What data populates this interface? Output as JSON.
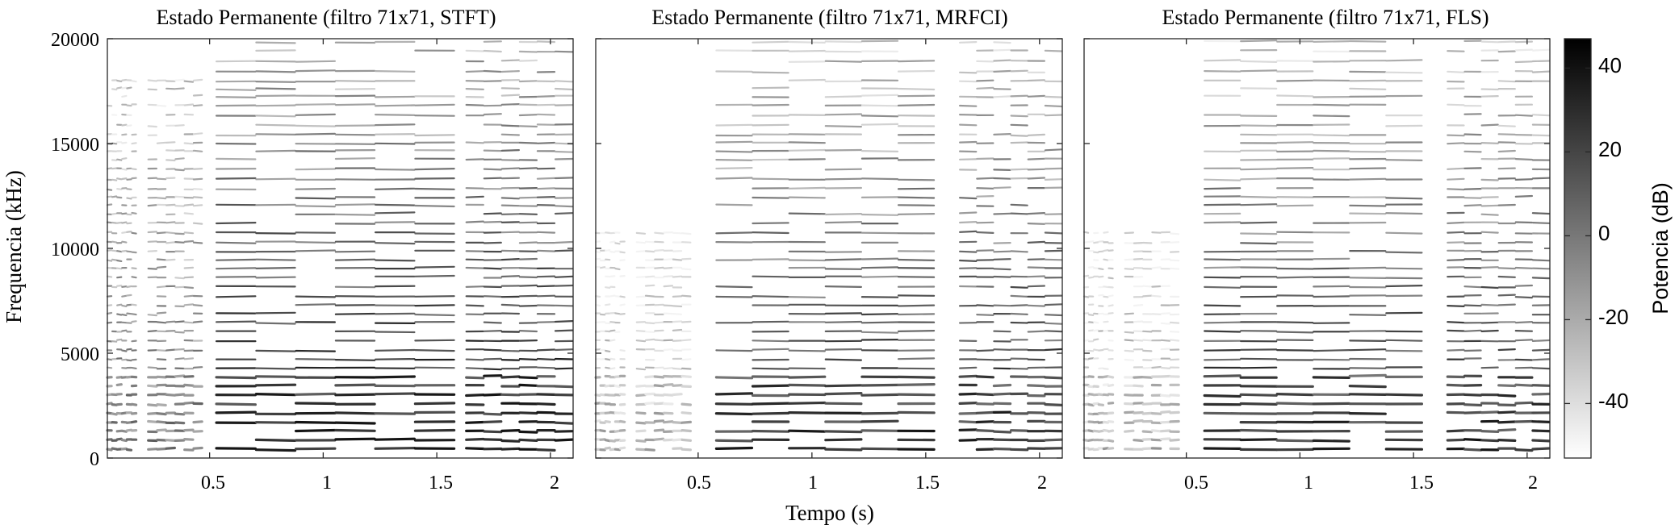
{
  "chart_data": {
    "type": "heatmap",
    "panels": [
      {
        "title": "Estado Permanente (filtro 71x71, STFT)",
        "xlim": [
          0.05,
          2.1
        ],
        "ylim": [
          0,
          20000
        ],
        "xticks": [
          0.5,
          1,
          1.5,
          2
        ],
        "xtick_labels": [
          "0.5",
          "1",
          "1.5",
          "2"
        ],
        "yticks": [
          0,
          5000,
          10000,
          15000,
          20000
        ],
        "ytick_labels": [
          "0",
          "5000",
          "10000",
          "15000",
          "20000"
        ],
        "segments_s": [
          [
            0.05,
            0.18
          ],
          [
            0.23,
            0.47
          ],
          [
            0.53,
            1.58
          ],
          [
            1.63,
            2.1
          ]
        ],
        "variant": "stft"
      },
      {
        "title": "Estado Permanente (filtro 71x71, MRFCI)",
        "xlim": [
          0.05,
          2.1
        ],
        "ylim": [
          0,
          20000
        ],
        "xticks": [
          0.5,
          1,
          1.5,
          2
        ],
        "xtick_labels": [
          "0.5",
          "1",
          "1.5",
          "2"
        ],
        "segments_s": [
          [
            0.05,
            0.18
          ],
          [
            0.23,
            0.47
          ],
          [
            0.58,
            1.54
          ],
          [
            1.65,
            2.1
          ]
        ],
        "variant": "mrfci"
      },
      {
        "title": "Estado Permanente (filtro 71x71, FLS)",
        "xlim": [
          0.05,
          2.1
        ],
        "ylim": [
          0,
          20000
        ],
        "xticks": [
          0.5,
          1,
          1.5,
          2
        ],
        "xtick_labels": [
          "0.5",
          "1",
          "1.5",
          "2"
        ],
        "segments_s": [
          [
            0.05,
            0.18
          ],
          [
            0.23,
            0.47
          ],
          [
            0.58,
            1.54
          ],
          [
            1.65,
            2.1
          ]
        ],
        "variant": "fls"
      }
    ],
    "xlabel": "Tempo (s)",
    "ylabel": "Frequencia (kHz)",
    "fundamental_hz": 430,
    "colorbar": {
      "label": "Potencia (dB)",
      "range": [
        -53,
        47
      ],
      "ticks": [
        40,
        20,
        0,
        -20,
        -40
      ],
      "tick_labels": [
        "40",
        "20",
        "0",
        "-20",
        "-40"
      ],
      "colormap": "gray-reversed",
      "color_low": "#ffffff",
      "color_high": "#000000"
    }
  }
}
